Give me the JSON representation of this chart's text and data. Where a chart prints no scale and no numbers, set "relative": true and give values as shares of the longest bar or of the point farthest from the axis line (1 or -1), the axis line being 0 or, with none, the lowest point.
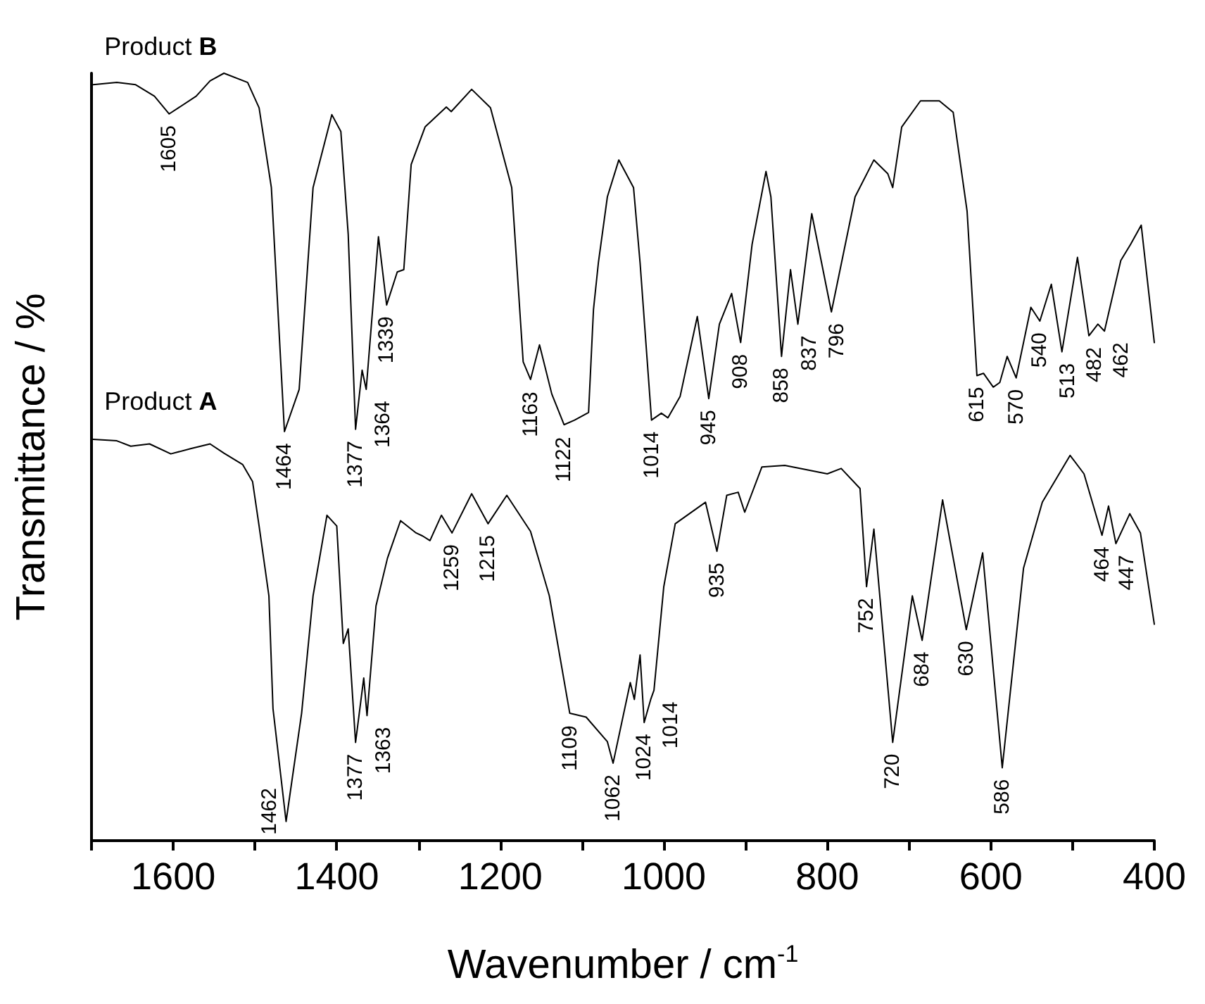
{
  "chart_data": {
    "type": "line",
    "relative": true,
    "xlabel": "Wavenumber / cm$^{-1}$",
    "ylabel": "Transmittance / %",
    "xlim": [
      1700,
      400
    ],
    "xticks": [
      {
        "value": 1700,
        "label": null
      },
      1600,
      {
        "value": 1500,
        "label": null
      },
      1400,
      {
        "value": 1300,
        "label": null
      },
      1200,
      {
        "value": 1100,
        "label": null
      },
      1000,
      {
        "value": 900,
        "label": null
      },
      800,
      {
        "value": 700,
        "label": null
      },
      600,
      {
        "value": 500,
        "label": null
      },
      400
    ],
    "legend": false,
    "grid": false,
    "marker": "none",
    "line_style": "solid",
    "series": [
      {
        "name": "Product B",
        "color": "#000000",
        "x": [
          1698,
          1669,
          1646,
          1623,
          1605,
          1572,
          1555,
          1538,
          1509,
          1495,
          1480,
          1464,
          1446,
          1429,
          1406,
          1395,
          1386,
          1377,
          1369,
          1364,
          1349,
          1339,
          1326,
          1318,
          1309,
          1292,
          1266,
          1260,
          1235,
          1212,
          1186,
          1172,
          1163,
          1152,
          1137,
          1122,
          1109,
          1092,
          1086,
          1080,
          1069,
          1055,
          1037,
          1029,
          1015,
          1003,
          995,
          980,
          959,
          945,
          932,
          917,
          906,
          892,
          875,
          869,
          856,
          845,
          836,
          819,
          795,
          766,
          743,
          726,
          720,
          709,
          686,
          663,
          646,
          629,
          617,
          609,
          597,
          589,
          580,
          569,
          551,
          540,
          526,
          513,
          494,
          480,
          469,
          461,
          441,
          429,
          416,
          400
        ],
        "values": [
          0.985,
          0.988,
          0.985,
          0.97,
          0.947,
          0.97,
          0.99,
          1.0,
          0.988,
          0.955,
          0.851,
          0.533,
          0.588,
          0.851,
          0.946,
          0.924,
          0.79,
          0.536,
          0.613,
          0.588,
          0.787,
          0.698,
          0.741,
          0.744,
          0.881,
          0.93,
          0.956,
          0.95,
          0.979,
          0.955,
          0.851,
          0.624,
          0.601,
          0.646,
          0.582,
          0.542,
          0.548,
          0.558,
          0.692,
          0.753,
          0.839,
          0.887,
          0.851,
          0.753,
          0.548,
          0.557,
          0.551,
          0.579,
          0.683,
          0.576,
          0.673,
          0.713,
          0.649,
          0.777,
          0.872,
          0.839,
          0.631,
          0.744,
          0.673,
          0.817,
          0.689,
          0.839,
          0.887,
          0.869,
          0.851,
          0.93,
          0.964,
          0.964,
          0.949,
          0.82,
          0.606,
          0.609,
          0.591,
          0.597,
          0.631,
          0.603,
          0.695,
          0.677,
          0.725,
          0.637,
          0.76,
          0.658,
          0.673,
          0.664,
          0.756,
          0.777,
          0.802,
          0.649
        ]
      },
      {
        "name": "Product A",
        "color": "#000000",
        "x": [
          1698,
          1669,
          1652,
          1629,
          1603,
          1578,
          1555,
          1538,
          1515,
          1503,
          1495,
          1483,
          1478,
          1462,
          1443,
          1429,
          1412,
          1400,
          1392,
          1386,
          1377,
          1367,
          1363,
          1352,
          1338,
          1322,
          1303,
          1295,
          1286,
          1272,
          1259,
          1235,
          1215,
          1192,
          1163,
          1140,
          1115,
          1095,
          1069,
          1062,
          1041,
          1036,
          1029,
          1024,
          1016,
          1012,
          1000,
          986,
          949,
          935,
          923,
          909,
          901,
          880,
          852,
          800,
          783,
          760,
          752,
          743,
          720,
          696,
          684,
          659,
          630,
          610,
          586,
          560,
          537,
          503,
          486,
          464,
          456,
          447,
          430,
          417,
          400
        ],
        "values": [
          0.523,
          0.521,
          0.514,
          0.517,
          0.504,
          0.511,
          0.517,
          0.505,
          0.49,
          0.468,
          0.41,
          0.319,
          0.172,
          0.025,
          0.166,
          0.319,
          0.424,
          0.41,
          0.257,
          0.276,
          0.128,
          0.212,
          0.163,
          0.306,
          0.368,
          0.417,
          0.401,
          0.397,
          0.391,
          0.424,
          0.401,
          0.452,
          0.413,
          0.45,
          0.403,
          0.319,
          0.166,
          0.161,
          0.129,
          0.101,
          0.206,
          0.184,
          0.242,
          0.154,
          0.184,
          0.196,
          0.331,
          0.413,
          0.441,
          0.377,
          0.45,
          0.454,
          0.428,
          0.487,
          0.489,
          0.478,
          0.485,
          0.459,
          0.331,
          0.406,
          0.128,
          0.319,
          0.261,
          0.444,
          0.275,
          0.375,
          0.095,
          0.355,
          0.441,
          0.502,
          0.478,
          0.398,
          0.436,
          0.387,
          0.426,
          0.401,
          0.282
        ]
      }
    ],
    "annotations": [
      {
        "text": "1605",
        "x": 1605,
        "y": 0.947
      },
      {
        "text": "1464",
        "x": 1464,
        "y": 0.533
      },
      {
        "text": "1377",
        "x": 1377,
        "y": 0.536
      },
      {
        "text": "1364",
        "x": 1364,
        "y": 0.588
      },
      {
        "text": "1339",
        "x": 1339,
        "y": 0.698
      },
      {
        "text": "1163",
        "x": 1163,
        "y": 0.601
      },
      {
        "text": "1122",
        "x": 1122,
        "y": 0.542
      },
      {
        "text": "1014",
        "x": 1015,
        "y": 0.548
      },
      {
        "text": "945",
        "x": 945,
        "y": 0.576
      },
      {
        "text": "908",
        "x": 906,
        "y": 0.649
      },
      {
        "text": "858",
        "x": 856,
        "y": 0.631
      },
      {
        "text": "837",
        "x": 836,
        "y": 0.673
      },
      {
        "text": "796",
        "x": 795,
        "y": 0.689
      },
      {
        "text": "615",
        "x": 617,
        "y": 0.606
      },
      {
        "text": "570",
        "x": 569,
        "y": 0.603
      },
      {
        "text": "540",
        "x": 540,
        "y": 0.677
      },
      {
        "text": "513",
        "x": 513,
        "y": 0.637
      },
      {
        "text": "482",
        "x": 480,
        "y": 0.658
      },
      {
        "text": "462",
        "x": 461,
        "y": 0.664
      },
      {
        "text": "1462",
        "x": 1462,
        "y": 0.025
      },
      {
        "text": "1377",
        "x": 1377,
        "y": 0.128
      },
      {
        "text": "1363",
        "x": 1363,
        "y": 0.163
      },
      {
        "text": "1259",
        "x": 1259,
        "y": 0.401
      },
      {
        "text": "1215",
        "x": 1215,
        "y": 0.413
      },
      {
        "text": "1109",
        "x": 1115,
        "y": 0.166
      },
      {
        "text": "1062",
        "x": 1062,
        "y": 0.101
      },
      {
        "text": "1024",
        "x": 1024,
        "y": 0.154
      },
      {
        "text": "1014",
        "x": 1012,
        "y": 0.196
      },
      {
        "text": "935",
        "x": 935,
        "y": 0.377
      },
      {
        "text": "752",
        "x": 752,
        "y": 0.331
      },
      {
        "text": "720",
        "x": 720,
        "y": 0.128
      },
      {
        "text": "684",
        "x": 684,
        "y": 0.261
      },
      {
        "text": "630",
        "x": 630,
        "y": 0.275
      },
      {
        "text": "586",
        "x": 586,
        "y": 0.095
      },
      {
        "text": "464",
        "x": 464,
        "y": 0.398
      },
      {
        "text": "447",
        "x": 447,
        "y": 0.387
      }
    ]
  }
}
